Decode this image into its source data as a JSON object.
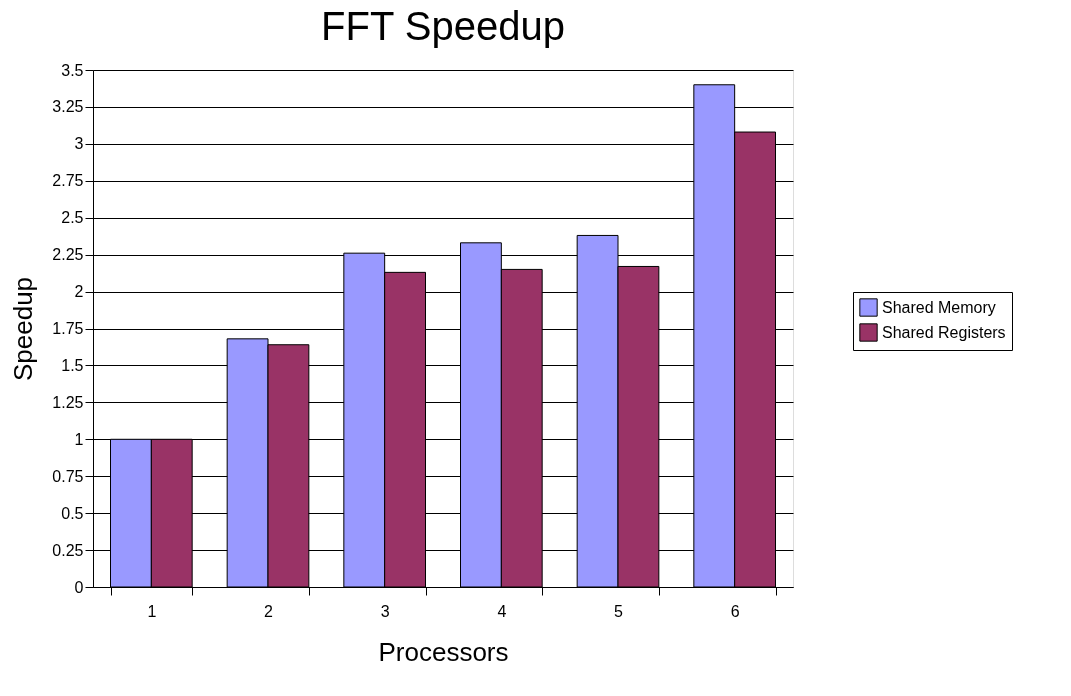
{
  "chart_data": {
    "type": "bar",
    "title": "FFT Speedup",
    "xlabel": "Processors",
    "ylabel": "Speedup",
    "categories": [
      "1",
      "2",
      "3",
      "4",
      "5",
      "6"
    ],
    "series": [
      {
        "name": "Shared Memory",
        "color": "#9999ff",
        "values": [
          1.0,
          1.68,
          2.26,
          2.33,
          2.38,
          3.4
        ]
      },
      {
        "name": "Shared Registers",
        "color": "#993366",
        "values": [
          1.0,
          1.64,
          2.13,
          2.15,
          2.17,
          3.08
        ]
      }
    ],
    "ylim": [
      0,
      3.5
    ],
    "yticks": [
      0,
      0.25,
      0.5,
      0.75,
      1,
      1.25,
      1.5,
      1.75,
      2,
      2.25,
      2.5,
      2.75,
      3,
      3.25,
      3.5
    ],
    "grid": "y",
    "legend": "right"
  }
}
